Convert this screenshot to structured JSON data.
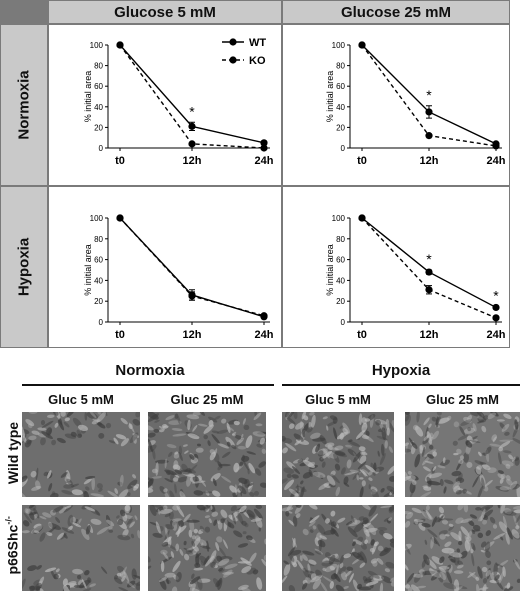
{
  "headers": {
    "col1": "Glucose 5 mM",
    "col2": "Glucose 25 mM",
    "row1": "Normoxia",
    "row2": "Hypoxia"
  },
  "chart_data": [
    {
      "type": "line",
      "panel": "Normoxia / Glucose 5 mM",
      "categories": [
        "t0",
        "12h",
        "24h"
      ],
      "ylabel": "% initial area",
      "ylim": [
        0,
        100
      ],
      "yticks": [
        0,
        20,
        40,
        60,
        80,
        100
      ],
      "legend": {
        "position": "top-right",
        "entries": [
          "WT",
          "KO"
        ]
      },
      "series": [
        {
          "name": "WT",
          "style": "solid",
          "values": [
            100,
            21,
            5
          ],
          "errors": [
            0,
            4,
            1
          ]
        },
        {
          "name": "KO",
          "style": "dashed",
          "values": [
            100,
            4,
            0
          ],
          "errors": [
            0,
            1,
            0.5
          ]
        }
      ],
      "annotations": [
        {
          "category": "12h",
          "text": "*"
        }
      ]
    },
    {
      "type": "line",
      "panel": "Normoxia / Glucose 25 mM",
      "categories": [
        "t0",
        "12h",
        "24h"
      ],
      "ylabel": "% initial area",
      "ylim": [
        0,
        100
      ],
      "yticks": [
        0,
        20,
        40,
        60,
        80,
        100
      ],
      "series": [
        {
          "name": "WT",
          "style": "solid",
          "values": [
            100,
            35,
            4
          ],
          "errors": [
            0,
            6,
            1
          ]
        },
        {
          "name": "KO",
          "style": "dashed",
          "values": [
            100,
            12,
            2
          ],
          "errors": [
            0,
            1,
            0.5
          ]
        }
      ],
      "annotations": [
        {
          "category": "12h",
          "text": "*"
        }
      ]
    },
    {
      "type": "line",
      "panel": "Hypoxia / Glucose 5 mM",
      "categories": [
        "t0",
        "12h",
        "24h"
      ],
      "ylabel": "% initial area",
      "ylim": [
        0,
        100
      ],
      "yticks": [
        0,
        20,
        40,
        60,
        80,
        100
      ],
      "series": [
        {
          "name": "WT",
          "style": "solid",
          "values": [
            100,
            26,
            5
          ],
          "errors": [
            0,
            5,
            1
          ]
        },
        {
          "name": "KO",
          "style": "dashed",
          "values": [
            100,
            25,
            6
          ],
          "errors": [
            0,
            4,
            1
          ]
        }
      ],
      "annotations": []
    },
    {
      "type": "line",
      "panel": "Hypoxia / Glucose 25 mM",
      "categories": [
        "t0",
        "12h",
        "24h"
      ],
      "ylabel": "% initial area",
      "ylim": [
        0,
        100
      ],
      "yticks": [
        0,
        20,
        40,
        60,
        80,
        100
      ],
      "series": [
        {
          "name": "WT",
          "style": "solid",
          "values": [
            100,
            48,
            14
          ],
          "errors": [
            0,
            2,
            1
          ]
        },
        {
          "name": "KO",
          "style": "dashed",
          "values": [
            100,
            31,
            4
          ],
          "errors": [
            0,
            4,
            1
          ]
        }
      ],
      "annotations": [
        {
          "category": "12h",
          "text": "*"
        },
        {
          "category": "24h",
          "text": "*"
        }
      ]
    }
  ],
  "micrographs": {
    "conditions": [
      "Normoxia",
      "Hypoxia"
    ],
    "columns": [
      "Gluc 5 mM",
      "Gluc 25 mM",
      "Gluc 5 mM",
      "Gluc 25 mM"
    ],
    "rows": [
      "Wild type",
      "p66Shc"
    ],
    "row_superscript": "-/-"
  }
}
